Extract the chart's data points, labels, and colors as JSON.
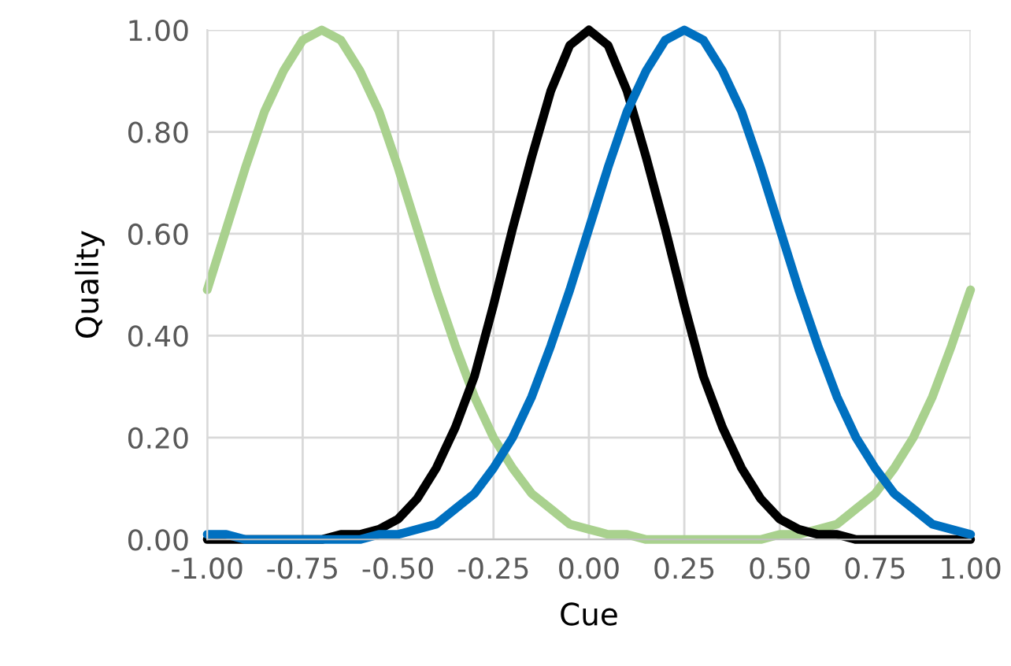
{
  "chart_data": {
    "type": "line",
    "xlabel": "Cue",
    "ylabel": "Quality",
    "x": [
      -1,
      -0.95,
      -0.9,
      -0.85,
      -0.8,
      -0.75,
      -0.7,
      -0.65,
      -0.6,
      -0.55,
      -0.5,
      -0.45,
      -0.4,
      -0.35,
      -0.3,
      -0.25,
      -0.2,
      -0.15,
      -0.1,
      -0.05,
      0,
      0.05,
      0.1,
      0.15,
      0.2,
      0.25,
      0.3,
      0.35,
      0.4,
      0.45,
      0.5,
      0.55,
      0.6,
      0.65,
      0.7,
      0.75,
      0.8,
      0.85,
      0.9,
      0.95,
      1
    ],
    "series": [
      {
        "color": "#a9d18e",
        "values": [
          0.49,
          0.61,
          0.73,
          0.84,
          0.92,
          0.98,
          1.0,
          0.98,
          0.92,
          0.84,
          0.73,
          0.61,
          0.49,
          0.38,
          0.28,
          0.2,
          0.14,
          0.09,
          0.06,
          0.03,
          0.02,
          0.01,
          0.01,
          0,
          0,
          0,
          0,
          0,
          0,
          0,
          0.01,
          0.01,
          0.02,
          0.03,
          0.06,
          0.09,
          0.14,
          0.2,
          0.28,
          0.38,
          0.49
        ]
      },
      {
        "color": "#000000",
        "values": [
          0,
          0,
          0,
          0,
          0,
          0,
          0,
          0.01,
          0.01,
          0.02,
          0.04,
          0.08,
          0.14,
          0.22,
          0.32,
          0.46,
          0.61,
          0.75,
          0.88,
          0.97,
          1.0,
          0.97,
          0.88,
          0.75,
          0.61,
          0.46,
          0.32,
          0.22,
          0.14,
          0.08,
          0.04,
          0.02,
          0.01,
          0.01,
          0,
          0,
          0,
          0,
          0,
          0,
          0
        ]
      },
      {
        "color": "#0070c0",
        "values": [
          0.01,
          0.01,
          0,
          0,
          0,
          0,
          0,
          0,
          0,
          0.01,
          0.01,
          0.02,
          0.03,
          0.06,
          0.09,
          0.14,
          0.2,
          0.28,
          0.38,
          0.49,
          0.61,
          0.73,
          0.84,
          0.92,
          0.98,
          1.0,
          0.98,
          0.92,
          0.84,
          0.73,
          0.61,
          0.49,
          0.38,
          0.28,
          0.2,
          0.14,
          0.09,
          0.06,
          0.03,
          0.02,
          0.01
        ]
      }
    ],
    "xlim": [
      -1,
      1
    ],
    "ylim": [
      0,
      1
    ],
    "xticks": [
      {
        "value": -1,
        "label": "-1.00"
      },
      {
        "value": -0.75,
        "label": "-0.75"
      },
      {
        "value": -0.5,
        "label": "-0.50"
      },
      {
        "value": -0.25,
        "label": "-0.25"
      },
      {
        "value": 0,
        "label": "0.00"
      },
      {
        "value": 0.25,
        "label": "0.25"
      },
      {
        "value": 0.5,
        "label": "0.50"
      },
      {
        "value": 0.75,
        "label": "0.75"
      },
      {
        "value": 1,
        "label": "1.00"
      }
    ],
    "yticks": [
      {
        "value": 0,
        "label": "0.00"
      },
      {
        "value": 0.2,
        "label": "0.20"
      },
      {
        "value": 0.4,
        "label": "0.40"
      },
      {
        "value": 0.6,
        "label": "0.60"
      },
      {
        "value": 0.8,
        "label": "0.80"
      },
      {
        "value": 1,
        "label": "1.00"
      }
    ],
    "grid": true,
    "marker": "none",
    "line_style": "solid"
  }
}
